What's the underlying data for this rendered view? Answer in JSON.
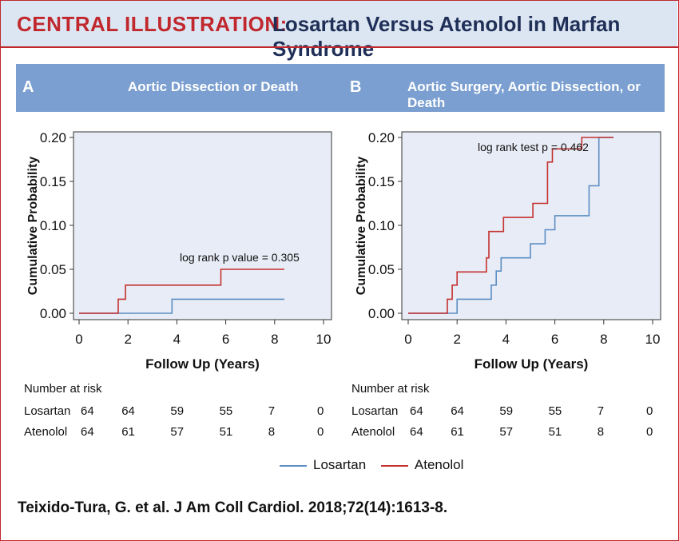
{
  "header": {
    "label": "CENTRAL ILLUSTRATION:",
    "title": "Losartan Versus Atenolol in Marfan Syndrome"
  },
  "panels": [
    {
      "letter": "A",
      "title": "Aortic Dissection or Death"
    },
    {
      "letter": "B",
      "title": "Aortic Surgery, Aortic Dissection, or Death"
    }
  ],
  "colors": {
    "losartan": "#5b8ec4",
    "atenolol": "#c4312f",
    "plot_bg": "#e8ecf6",
    "header_bg": "#dce6f2",
    "band_bg": "#7b9fd0",
    "accent": "#c0282d"
  },
  "chart_data": [
    {
      "type": "line",
      "step": true,
      "xlabel": "Follow Up (Years)",
      "ylabel": "Cumulative Probability",
      "xlim": [
        0,
        10
      ],
      "ylim": [
        0,
        0.2
      ],
      "xticks": [
        "0",
        "2",
        "4",
        "6",
        "8",
        "10"
      ],
      "yticks": [
        "0.00",
        "0.05",
        "0.10",
        "0.15",
        "0.20"
      ],
      "annotation": "log rank p value = 0.305",
      "series": [
        {
          "name": "Losartan",
          "x": [
            0,
            3.8,
            8.4
          ],
          "y": [
            0,
            0.016,
            0.016
          ]
        },
        {
          "name": "Atenolol",
          "x": [
            0,
            1.6,
            1.9,
            5.8,
            8.4
          ],
          "y": [
            0,
            0.016,
            0.032,
            0.05,
            0.05
          ]
        }
      ],
      "risk_table": {
        "title": "Number at risk",
        "times": [
          0,
          2,
          4,
          6,
          8,
          10
        ],
        "rows": [
          {
            "name": "Losartan",
            "values": [
              "64",
              "64",
              "59",
              "55",
              "7",
              "0"
            ]
          },
          {
            "name": "Atenolol",
            "values": [
              "64",
              "61",
              "57",
              "51",
              "8",
              "0"
            ]
          }
        ]
      }
    },
    {
      "type": "line",
      "step": true,
      "xlabel": "Follow Up (Years)",
      "ylabel": "Cumulative Probability",
      "xlim": [
        0,
        10
      ],
      "ylim": [
        0,
        0.2
      ],
      "xticks": [
        "0",
        "2",
        "4",
        "6",
        "8",
        "10"
      ],
      "yticks": [
        "0.00",
        "0.05",
        "0.10",
        "0.15",
        "0.20"
      ],
      "annotation": "log rank test p = 0.462",
      "series": [
        {
          "name": "Losartan",
          "x": [
            0,
            2.0,
            3.4,
            3.6,
            3.8,
            5.0,
            5.6,
            6.0,
            7.4,
            7.8,
            8.4
          ],
          "y": [
            0,
            0.016,
            0.032,
            0.048,
            0.063,
            0.079,
            0.095,
            0.111,
            0.145,
            0.2,
            0.2
          ]
        },
        {
          "name": "Atenolol",
          "x": [
            0,
            1.6,
            1.8,
            2.0,
            3.2,
            3.3,
            3.6,
            3.9,
            5.1,
            5.7,
            5.9,
            7.1,
            8.4
          ],
          "y": [
            0,
            0.016,
            0.032,
            0.047,
            0.063,
            0.093,
            0.093,
            0.109,
            0.125,
            0.172,
            0.187,
            0.2,
            0.2
          ]
        }
      ],
      "risk_table": {
        "title": "Number at risk",
        "times": [
          0,
          2,
          4,
          6,
          8,
          10
        ],
        "rows": [
          {
            "name": "Losartan",
            "values": [
              "64",
              "64",
              "59",
              "55",
              "7",
              "0"
            ]
          },
          {
            "name": "Atenolol",
            "values": [
              "64",
              "61",
              "57",
              "51",
              "8",
              "0"
            ]
          }
        ]
      }
    }
  ],
  "legend": [
    {
      "name": "Losartan",
      "key": "losartan"
    },
    {
      "name": "Atenolol",
      "key": "atenolol"
    }
  ],
  "citation": "Teixido-Tura, G. et al. J Am Coll Cardiol. 2018;72(14):1613-8."
}
